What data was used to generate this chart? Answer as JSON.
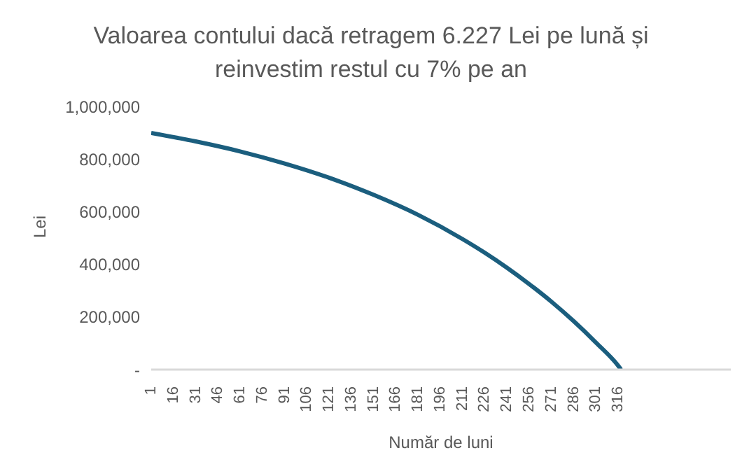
{
  "chart_data": {
    "type": "line",
    "title": "Valoarea contului dacă retragem 6.227 Lei pe lună și reinvestim restul cu 7% pe an",
    "xlabel": "Număr de luni",
    "ylabel": "Lei",
    "x": [
      1,
      31,
      61,
      91,
      121,
      151,
      181,
      211,
      226,
      241,
      256,
      271,
      286,
      301,
      316,
      318
    ],
    "series": [
      {
        "color": "#1b5e7e",
        "values": [
          899000,
          867000,
          829000,
          783000,
          729000,
          664000,
          588000,
          496000,
          444000,
          387000,
          325000,
          258000,
          184000,
          103000,
          15000,
          0
        ]
      }
    ],
    "xlim": [
      1,
      392
    ],
    "xticks": [
      1,
      16,
      31,
      46,
      61,
      76,
      91,
      106,
      121,
      136,
      151,
      166,
      181,
      196,
      211,
      226,
      241,
      256,
      271,
      286,
      301,
      316
    ],
    "ylim": [
      0,
      1000000
    ],
    "yticks": [
      {
        "value": 0,
        "label": "-"
      },
      {
        "value": 200000,
        "label": "200,000"
      },
      {
        "value": 400000,
        "label": "400,000"
      },
      {
        "value": 600000,
        "label": "600,000"
      },
      {
        "value": 800000,
        "label": "800,000"
      },
      {
        "value": 1000000,
        "label": "1,000,000"
      }
    ],
    "grid": false,
    "marker": "none",
    "line_style": "solid"
  }
}
